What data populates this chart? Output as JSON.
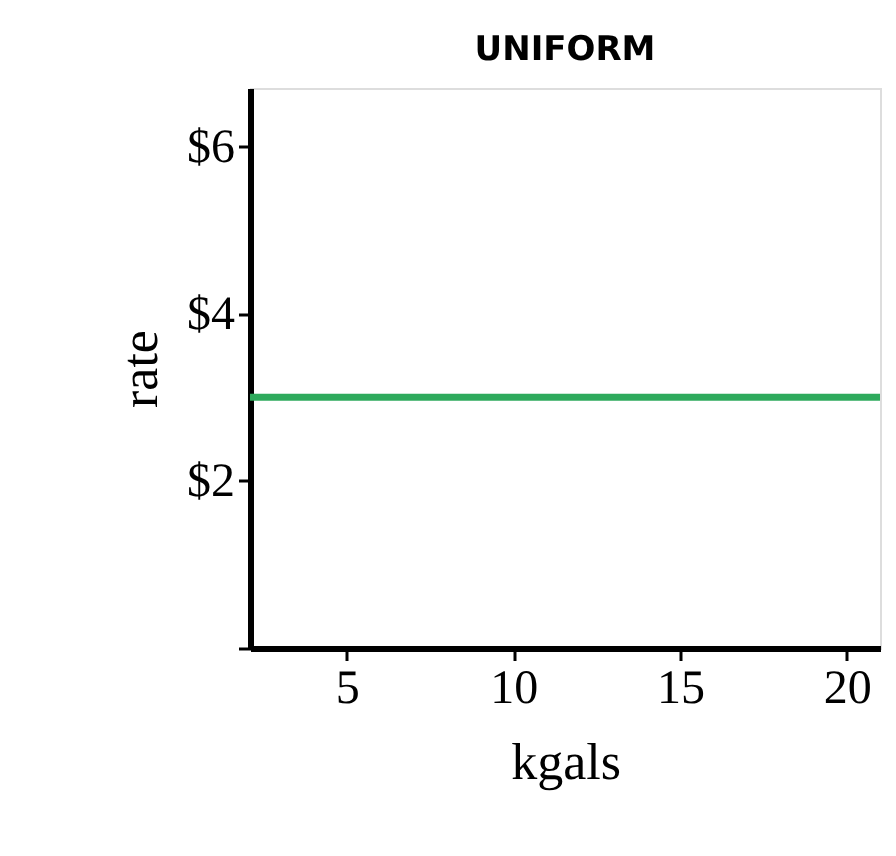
{
  "chart_data": {
    "type": "line",
    "title": "UNIFORM",
    "xlabel": "kgals",
    "ylabel": "rate",
    "x": [
      2.1,
      21
    ],
    "series": [
      {
        "color": "#2eaa5c",
        "values": [
          3,
          3
        ]
      }
    ],
    "xlim": [
      2.1,
      21
    ],
    "xticks": [
      5,
      10,
      15,
      20
    ],
    "ylim": [
      0,
      6.7
    ],
    "yticks": [
      {
        "value": 0,
        "label": null
      },
      {
        "value": 2,
        "label": "$2"
      },
      {
        "value": 4,
        "label": "$4"
      },
      {
        "value": 6,
        "label": "$6"
      }
    ],
    "grid": false,
    "marker": "none",
    "line_style": "solid"
  }
}
